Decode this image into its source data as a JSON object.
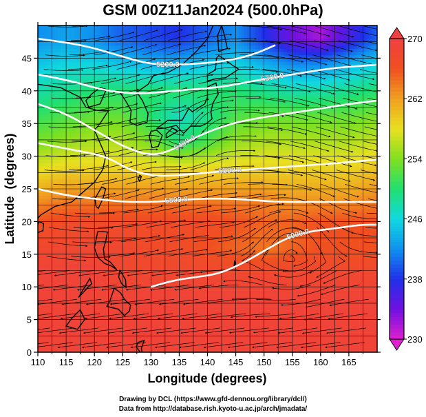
{
  "title": "GSM 00Z11Jan2024 (500.0hPa)",
  "credits": {
    "line1": "Drawing by DCL (https://www.gfd-dennou.org/library/dcl/)",
    "line2": "Data from http://database.rish.kyoto-u.ac.jp/arch/jmadata/"
  },
  "chart_data": {
    "type": "heatmap",
    "title": "GSM 00Z11Jan2024 (500.0hPa)",
    "xlabel": "Longitude (degrees)",
    "ylabel": "Latitude  (degrees)",
    "xlim": [
      110,
      170
    ],
    "ylim": [
      0,
      50
    ],
    "x_ticks": [
      110,
      115,
      120,
      125,
      130,
      135,
      140,
      145,
      150,
      155,
      160,
      165
    ],
    "y_ticks": [
      0,
      5,
      10,
      15,
      20,
      25,
      30,
      35,
      40,
      45
    ],
    "grid": true,
    "colorbar": {
      "ticks": [
        230,
        238,
        246,
        254,
        262,
        270
      ],
      "range": [
        230,
        270
      ],
      "colors": [
        "#e020d0",
        "#7010e0",
        "#2030e8",
        "#1090f0",
        "#10d8e0",
        "#20e070",
        "#80e020",
        "#e8e020",
        "#f0a020",
        "#f05020",
        "#f04040"
      ]
    },
    "contours": [
      {
        "label": "5200.0",
        "points": [
          [
            110,
            48
          ],
          [
            118,
            47
          ],
          [
            124,
            45.5
          ],
          [
            130,
            44
          ],
          [
            136,
            44
          ],
          [
            143,
            44.5
          ],
          [
            148,
            45.5
          ],
          [
            152,
            47
          ]
        ]
      },
      {
        "label": "5300.0",
        "points": [
          [
            110,
            42.5
          ],
          [
            116,
            41.5
          ],
          [
            122,
            40
          ],
          [
            128,
            39.5
          ],
          [
            134,
            40
          ],
          [
            142,
            40.5
          ],
          [
            148,
            41.5
          ],
          [
            155,
            42.5
          ],
          [
            162,
            43.5
          ],
          [
            170,
            44
          ]
        ]
      },
      {
        "label": "5400.0",
        "points": [
          [
            110,
            38
          ],
          [
            115,
            36.5
          ],
          [
            120,
            34
          ],
          [
            125,
            31.5
          ],
          [
            130,
            30
          ],
          [
            134,
            31
          ],
          [
            138,
            33
          ],
          [
            144,
            35
          ],
          [
            150,
            36
          ],
          [
            158,
            37
          ],
          [
            165,
            38
          ],
          [
            170,
            38.5
          ]
        ]
      },
      {
        "label": "5500.0",
        "points": [
          [
            110,
            32
          ],
          [
            116,
            31
          ],
          [
            122,
            30
          ],
          [
            126,
            28
          ],
          [
            130,
            27
          ],
          [
            134,
            27
          ],
          [
            140,
            27.5
          ],
          [
            148,
            28
          ],
          [
            156,
            28.5
          ],
          [
            164,
            29
          ],
          [
            170,
            29.5
          ]
        ]
      },
      {
        "label": "5800.0",
        "points": [
          [
            110,
            25
          ],
          [
            115,
            24
          ],
          [
            120,
            23.5
          ],
          [
            125,
            23
          ],
          [
            131,
            23
          ],
          [
            138,
            23.5
          ],
          [
            145,
            23.5
          ],
          [
            152,
            23
          ],
          [
            160,
            23
          ],
          [
            168,
            23
          ],
          [
            170,
            23
          ]
        ]
      },
      {
        "label": "5900.0",
        "points": [
          [
            130,
            10
          ],
          [
            134,
            11
          ],
          [
            138,
            11.5
          ],
          [
            142,
            12
          ],
          [
            146,
            13.5
          ],
          [
            150,
            15.5
          ],
          [
            154,
            17.5
          ],
          [
            158,
            18.5
          ],
          [
            163,
            19
          ],
          [
            167,
            19.5
          ],
          [
            170,
            19.5
          ]
        ]
      }
    ],
    "field": [
      {
        "lat": 48,
        "values": [
          242,
          243,
          242,
          240,
          239,
          238,
          240,
          242,
          238,
          234,
          232,
          236,
          240
        ]
      },
      {
        "lat": 44,
        "values": [
          245,
          246,
          246,
          245,
          244,
          244,
          245,
          246,
          244,
          242,
          242,
          244,
          246
        ]
      },
      {
        "lat": 40,
        "values": [
          248,
          249,
          250,
          250,
          250,
          250,
          250,
          250,
          249,
          248,
          248,
          249,
          250
        ]
      },
      {
        "lat": 36,
        "values": [
          251,
          252,
          253,
          253,
          250,
          247,
          249,
          252,
          253,
          253,
          253,
          253,
          254
        ]
      },
      {
        "lat": 32,
        "values": [
          254,
          255,
          256,
          256,
          254,
          250,
          252,
          255,
          256,
          256,
          256,
          256,
          257
        ]
      },
      {
        "lat": 28,
        "values": [
          258,
          259,
          259,
          259,
          259,
          259,
          259,
          259,
          259,
          259,
          259,
          259,
          260
        ]
      },
      {
        "lat": 24,
        "values": [
          262,
          263,
          263,
          263,
          263,
          263,
          263,
          263,
          263,
          262,
          262,
          262,
          263
        ]
      },
      {
        "lat": 20,
        "values": [
          266,
          267,
          267,
          267,
          267,
          267,
          267,
          266,
          265,
          265,
          266,
          266,
          266
        ]
      },
      {
        "lat": 16,
        "values": [
          268,
          268,
          268,
          268,
          267,
          267,
          266,
          265,
          264,
          265,
          266,
          266,
          266
        ]
      },
      {
        "lat": 12,
        "values": [
          269,
          269,
          269,
          268,
          268,
          268,
          268,
          268,
          268,
          268,
          268,
          268,
          268
        ]
      },
      {
        "lat": 8,
        "values": [
          269,
          269,
          269,
          269,
          269,
          269,
          269,
          269,
          269,
          269,
          269,
          269,
          269
        ]
      },
      {
        "lat": 4,
        "values": [
          269,
          269,
          269,
          269,
          269,
          269,
          269,
          269,
          269,
          269,
          269,
          269,
          269
        ]
      },
      {
        "lat": 0,
        "values": [
          269,
          269,
          269,
          269,
          269,
          269,
          269,
          269,
          269,
          269,
          269,
          269,
          269
        ]
      }
    ]
  }
}
